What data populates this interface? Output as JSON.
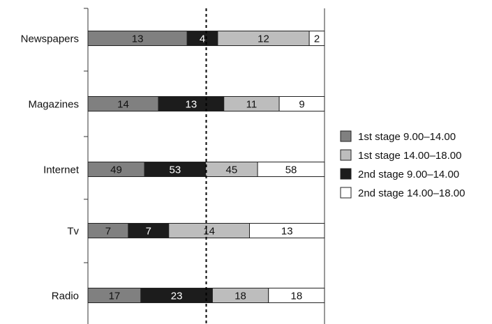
{
  "chart_data": {
    "type": "bar",
    "orientation": "horizontal",
    "stacked": "normalized",
    "categories": [
      "Newspapers",
      "Magazines",
      "Internet",
      "Tv",
      "Radio"
    ],
    "series": [
      {
        "name": "1st stage 9.00–14.00",
        "color": "#808080",
        "text_color": "#111111",
        "values": [
          13,
          14,
          49,
          7,
          17
        ]
      },
      {
        "name": "2nd stage 9.00–14.00",
        "color": "#1c1c1c",
        "text_color": "#ffffff",
        "values": [
          4,
          13,
          53,
          7,
          23
        ]
      },
      {
        "name": "1st stage 14.00–18.00",
        "color": "#bdbdbd",
        "text_color": "#111111",
        "values": [
          12,
          11,
          45,
          14,
          18
        ]
      },
      {
        "name": "2nd stage 14.00–18.00",
        "color": "#ffffff",
        "text_color": "#111111",
        "values": [
          2,
          9,
          58,
          13,
          18
        ]
      }
    ],
    "legend_order": [
      0,
      2,
      1,
      3
    ],
    "legend_position": "right",
    "reference_line": "dashed vertical at 50%",
    "grid": false
  }
}
